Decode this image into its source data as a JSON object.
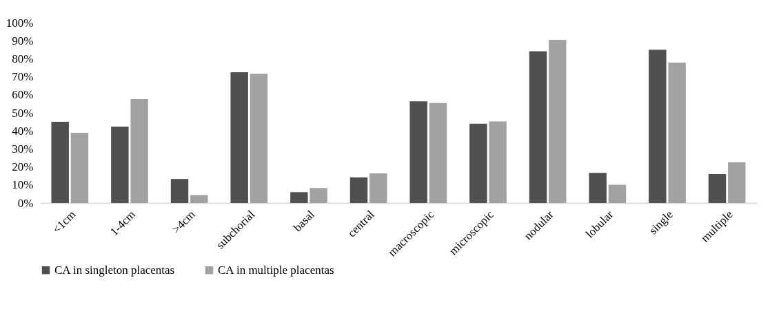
{
  "chart_data": {
    "type": "bar",
    "categories": [
      "<1cm",
      "1-4cm",
      ">4cm",
      "subchorial",
      "basal",
      "central",
      "macroscopic",
      "microscopic",
      "nodular",
      "lobular",
      "single",
      "multiple"
    ],
    "series": [
      {
        "name": "CA in singleton placentas",
        "color": "#505050",
        "values": [
          45,
          42.4,
          13.3,
          72.5,
          6,
          14.2,
          56.4,
          44,
          84.2,
          16.7,
          85,
          16
        ]
      },
      {
        "name": "CA in multiple placentas",
        "color": "#a2a2a2",
        "values": [
          38.9,
          57.6,
          4.4,
          71.7,
          8.3,
          16.4,
          55.4,
          45.2,
          90.5,
          10.1,
          77.9,
          22.6
        ]
      }
    ],
    "ylim": [
      0,
      100
    ],
    "yticks": [
      {
        "value": 0,
        "label": "0%"
      },
      {
        "value": 10,
        "label": "10%"
      },
      {
        "value": 20,
        "label": "20%"
      },
      {
        "value": 30,
        "label": "30%"
      },
      {
        "value": 40,
        "label": "40%"
      },
      {
        "value": 50,
        "label": "50%"
      },
      {
        "value": 60,
        "label": "60%"
      },
      {
        "value": 70,
        "label": "70%"
      },
      {
        "value": 80,
        "label": "80%"
      },
      {
        "value": 90,
        "label": "90%"
      },
      {
        "value": 100,
        "label": "100%"
      }
    ],
    "grid": false,
    "legend": "bottom"
  }
}
